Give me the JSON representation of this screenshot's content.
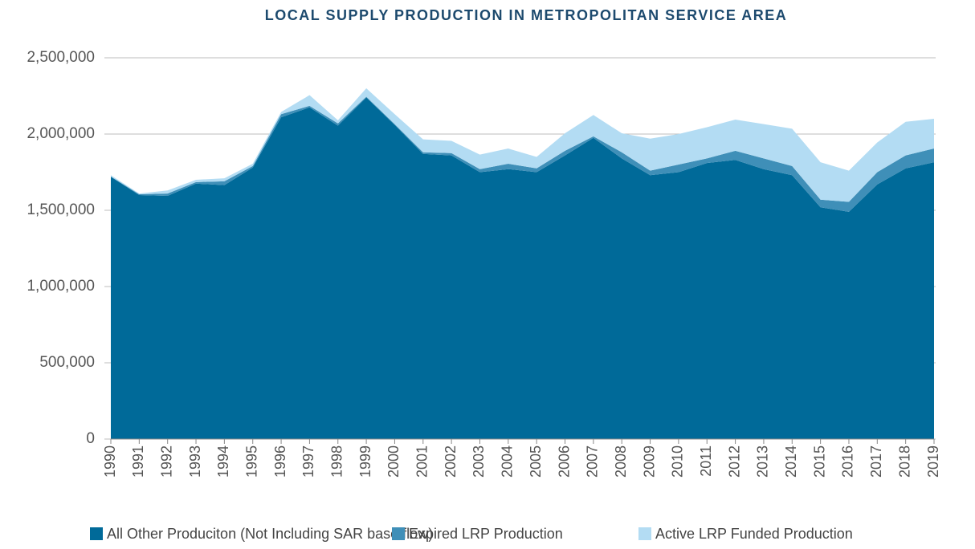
{
  "chart_data": {
    "type": "stacked_area",
    "title": "LOCAL SUPPLY PRODUCTION IN METROPOLITAN SERVICE AREA",
    "categories": [
      "1990",
      "1991",
      "1992",
      "1993",
      "1994",
      "1995",
      "1996",
      "1997",
      "1998",
      "1999",
      "2000",
      "2001",
      "2002",
      "2003",
      "2004",
      "2005",
      "2006",
      "2007",
      "2008",
      "2009",
      "2010",
      "2011",
      "2012",
      "2013",
      "2014",
      "2015",
      "2016",
      "2017",
      "2018",
      "2019"
    ],
    "series": [
      {
        "name": "All Other Produciton (Not Including SAR base flow)",
        "color": "#006a99",
        "values": [
          1720000,
          1600000,
          1595000,
          1675000,
          1665000,
          1780000,
          2110000,
          2175000,
          2055000,
          2240000,
          2060000,
          1870000,
          1860000,
          1750000,
          1770000,
          1750000,
          1860000,
          1975000,
          1840000,
          1730000,
          1750000,
          1810000,
          1830000,
          1770000,
          1730000,
          1520000,
          1490000,
          1670000,
          1775000,
          1815000
        ]
      },
      {
        "name": "Expired LRP Production",
        "color": "#3f8fb8",
        "values": [
          2000,
          5000,
          15000,
          10000,
          25000,
          10000,
          20000,
          10000,
          15000,
          5000,
          5000,
          10000,
          15000,
          20000,
          35000,
          25000,
          30000,
          10000,
          40000,
          30000,
          50000,
          30000,
          60000,
          70000,
          60000,
          50000,
          65000,
          80000,
          85000,
          90000
        ]
      },
      {
        "name": "Active LRP Funded Production",
        "color": "#b3dcf3",
        "values": [
          8000,
          5000,
          20000,
          15000,
          20000,
          15000,
          15000,
          70000,
          20000,
          55000,
          65000,
          85000,
          80000,
          95000,
          100000,
          75000,
          115000,
          140000,
          125000,
          210000,
          200000,
          205000,
          205000,
          225000,
          245000,
          245000,
          205000,
          195000,
          220000,
          195000
        ]
      }
    ],
    "ylim": [
      0,
      2500000
    ],
    "yticks": [
      0,
      {
        "value": 500000,
        "label": "500,000"
      },
      {
        "value": 1000000,
        "label": "1,000,000"
      },
      {
        "value": 1500000,
        "label": "1,500,000"
      },
      {
        "value": 2000000,
        "label": "2,000,000"
      },
      {
        "value": 2500000,
        "label": "2,500,000"
      }
    ],
    "grid": true,
    "legend": "bottom"
  }
}
